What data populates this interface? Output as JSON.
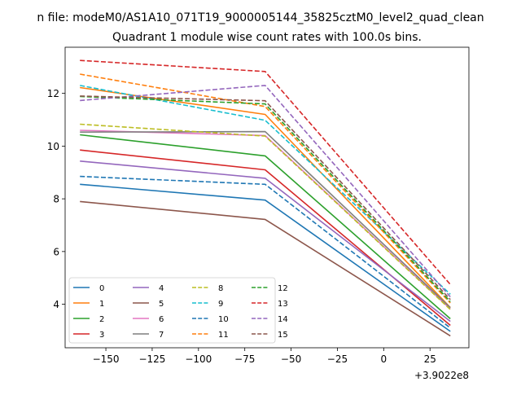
{
  "chart_data": {
    "type": "line",
    "suptitle": "n file: modeM0/AS1A10_071T19_9000005144_35825cztM0_level2_quad_clean",
    "title": "Quadrant 1 module wise count rates with 100.0s bins.",
    "xlabel": "",
    "ylabel": "",
    "x_offset_label": "+3.9022e8",
    "xlim": [
      -172,
      46
    ],
    "ylim": [
      2.35,
      13.75
    ],
    "x": [
      -164,
      -64,
      36
    ],
    "xticks": [
      -150,
      -125,
      -100,
      -75,
      -50,
      -25,
      0,
      25
    ],
    "xtick_labels": [
      "−150",
      "−125",
      "−100",
      "−75",
      "−50",
      "−25",
      "0",
      "25"
    ],
    "yticks": [
      4,
      6,
      8,
      10,
      12
    ],
    "ytick_labels": [
      "4",
      "6",
      "8",
      "10",
      "12"
    ],
    "legend_position": "lower-left",
    "legend_columns": 4,
    "grid": false,
    "series": [
      {
        "name": "0",
        "color": "#1f77b4",
        "dash": "solid",
        "values": [
          8.55,
          7.95,
          2.97
        ]
      },
      {
        "name": "1",
        "color": "#ff7f0e",
        "dash": "solid",
        "values": [
          12.22,
          11.2,
          3.88
        ]
      },
      {
        "name": "2",
        "color": "#2ca02c",
        "dash": "solid",
        "values": [
          10.43,
          9.63,
          3.45
        ]
      },
      {
        "name": "3",
        "color": "#d62728",
        "dash": "solid",
        "values": [
          9.85,
          9.1,
          3.2
        ]
      },
      {
        "name": "4",
        "color": "#9467bd",
        "dash": "solid",
        "values": [
          9.43,
          8.78,
          3.35
        ]
      },
      {
        "name": "5",
        "color": "#8c564b",
        "dash": "solid",
        "values": [
          7.9,
          7.22,
          2.8
        ]
      },
      {
        "name": "6",
        "color": "#e377c2",
        "dash": "solid",
        "values": [
          10.6,
          10.4,
          3.82
        ]
      },
      {
        "name": "7",
        "color": "#7f7f7f",
        "dash": "solid",
        "values": [
          10.53,
          10.55,
          3.87
        ]
      },
      {
        "name": "8",
        "color": "#bcbd22",
        "dash": "dashed",
        "values": [
          10.83,
          10.38,
          3.8
        ]
      },
      {
        "name": "9",
        "color": "#17becf",
        "dash": "dashed",
        "values": [
          12.3,
          10.98,
          4.38
        ]
      },
      {
        "name": "10",
        "color": "#1f77b4",
        "dash": "dashed",
        "values": [
          8.85,
          8.55,
          3.1
        ]
      },
      {
        "name": "11",
        "color": "#ff7f0e",
        "dash": "dashed",
        "values": [
          12.73,
          11.5,
          4.05
        ]
      },
      {
        "name": "12",
        "color": "#2ca02c",
        "dash": "dashed",
        "values": [
          11.88,
          11.6,
          4.1
        ]
      },
      {
        "name": "13",
        "color": "#d62728",
        "dash": "dashed",
        "values": [
          13.25,
          12.83,
          4.75
        ]
      },
      {
        "name": "14",
        "color": "#9467bd",
        "dash": "dashed",
        "values": [
          11.73,
          12.3,
          4.28
        ]
      },
      {
        "name": "15",
        "color": "#8c564b",
        "dash": "dashed",
        "values": [
          11.9,
          11.72,
          4.18
        ]
      }
    ]
  }
}
